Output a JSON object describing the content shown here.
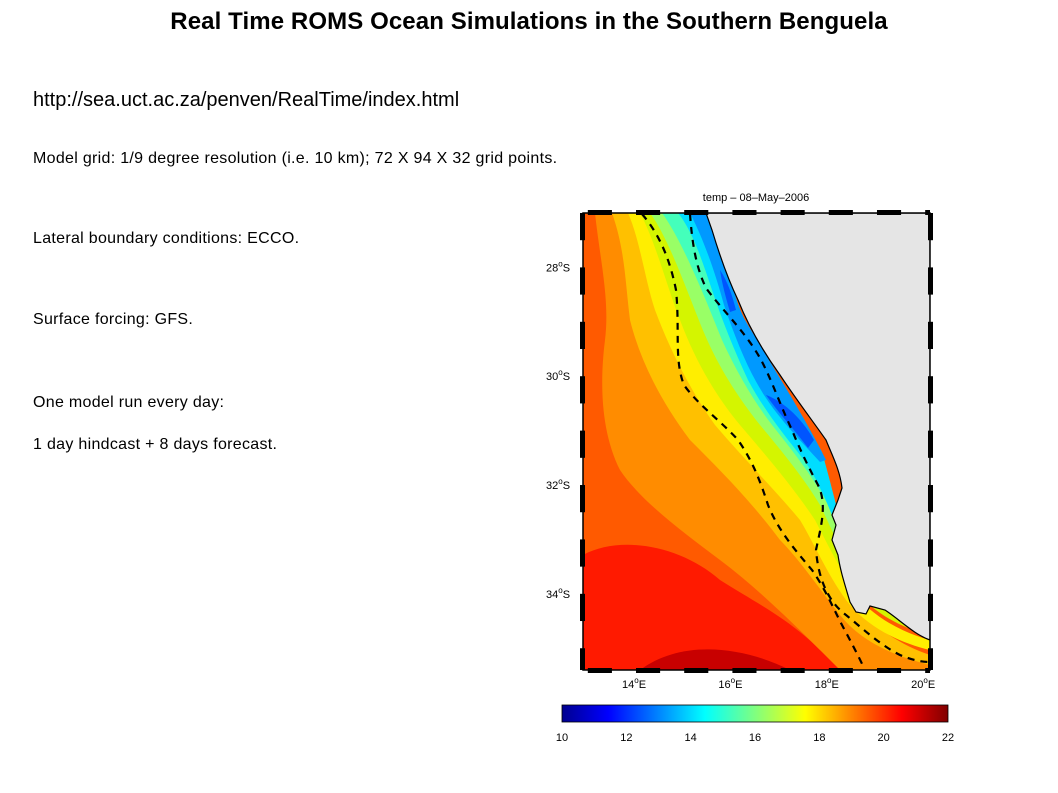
{
  "page": {
    "title": "Real Time ROMS Ocean Simulations in the Southern Benguela",
    "url": "http://sea.uct.ac.za/penven/RealTime/index.html",
    "lines": [
      "Model grid: 1/9 degree resolution (i.e. 10 km); 72 X 94 X 32 grid points.",
      "Lateral boundary conditions: ECCO.",
      "Surface forcing: GFS.",
      "One model run every day:",
      "1 day hindcast + 8 days forecast."
    ]
  },
  "map": {
    "plot_title": "temp – 08–May–2006",
    "lat_labels": [
      {
        "deg": "28",
        "sup": "o",
        "hemi": "S",
        "lat": -28
      },
      {
        "deg": "30",
        "sup": "o",
        "hemi": "S",
        "lat": -30
      },
      {
        "deg": "32",
        "sup": "o",
        "hemi": "S",
        "lat": -32
      },
      {
        "deg": "34",
        "sup": "o",
        "hemi": "S",
        "lat": -34
      }
    ],
    "lon_labels": [
      {
        "deg": "14",
        "sup": "o",
        "hemi": "E",
        "lon": 14
      },
      {
        "deg": "16",
        "sup": "o",
        "hemi": "E",
        "lon": 16
      },
      {
        "deg": "18",
        "sup": "o",
        "hemi": "E",
        "lon": 18
      },
      {
        "deg": "20",
        "sup": "o",
        "hemi": "E",
        "lon": 20
      }
    ],
    "colorbar": {
      "ticks": [
        "10",
        "12",
        "14",
        "16",
        "18",
        "20",
        "22"
      ],
      "min": 10,
      "max": 22,
      "colormap": [
        "#00008f",
        "#0000ff",
        "#00ffff",
        "#ffff00",
        "#ff0000",
        "#800000"
      ]
    },
    "land_color": "#e5e5e5",
    "band_colors": [
      "#c80000",
      "#ff1a00",
      "#ff5a00",
      "#ff8c00",
      "#ffc000",
      "#ffee00",
      "#d4f500",
      "#99ff66",
      "#44ffbb",
      "#00ddff",
      "#0099ff",
      "#0055ff"
    ]
  }
}
